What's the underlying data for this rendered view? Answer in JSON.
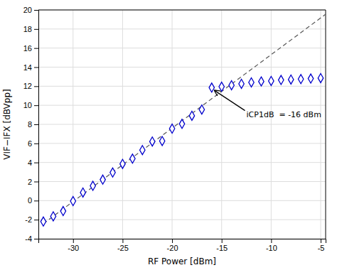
{
  "chart_data": {
    "type": "scatter",
    "xlabel": "RF Power [dBm]",
    "ylabel": "VIF−IFX [dBVpp]",
    "xlim": [
      -33.5,
      -4.5
    ],
    "ylim": [
      -4,
      20
    ],
    "xticks": [
      -30,
      -25,
      -20,
      -15,
      -10,
      -5
    ],
    "yticks": [
      -4,
      -2,
      0,
      2,
      4,
      6,
      8,
      10,
      12,
      14,
      16,
      18,
      20
    ],
    "grid": true,
    "series": [
      {
        "type": "line",
        "color": "#555555",
        "line_style": "dashed",
        "x": [
          -33,
          -4.5
        ],
        "values": [
          -2.41432745,
          19.5489077
        ]
      },
      {
        "type": "scatter",
        "color": "#0000CC",
        "marker": "diamond",
        "x": [
          -33,
          -32,
          -31,
          -30,
          -29,
          -28,
          -27,
          -26,
          -25,
          -24,
          -23,
          -22,
          -21,
          -20,
          -19,
          -18,
          -17,
          -16,
          -15,
          -14,
          -13,
          -12,
          -11,
          -10,
          -9,
          -8,
          -7,
          -6,
          -5
        ],
        "values": [
          -2.2,
          -1.65,
          -1.1,
          -0.05,
          0.85,
          1.55,
          2.2,
          2.95,
          3.85,
          4.4,
          5.3,
          6.2,
          6.25,
          7.55,
          8.05,
          8.9,
          9.55,
          11.85,
          11.95,
          12.1,
          12.25,
          12.4,
          12.5,
          12.55,
          12.65,
          12.7,
          12.75,
          12.8,
          12.85
        ]
      }
    ],
    "annotations": [
      {
        "text": "iCP1dB  = -16 dBm",
        "x": -16.0,
        "y": 11.85,
        "text_x": -12.5,
        "text_y": 9.0
      }
    ]
  }
}
